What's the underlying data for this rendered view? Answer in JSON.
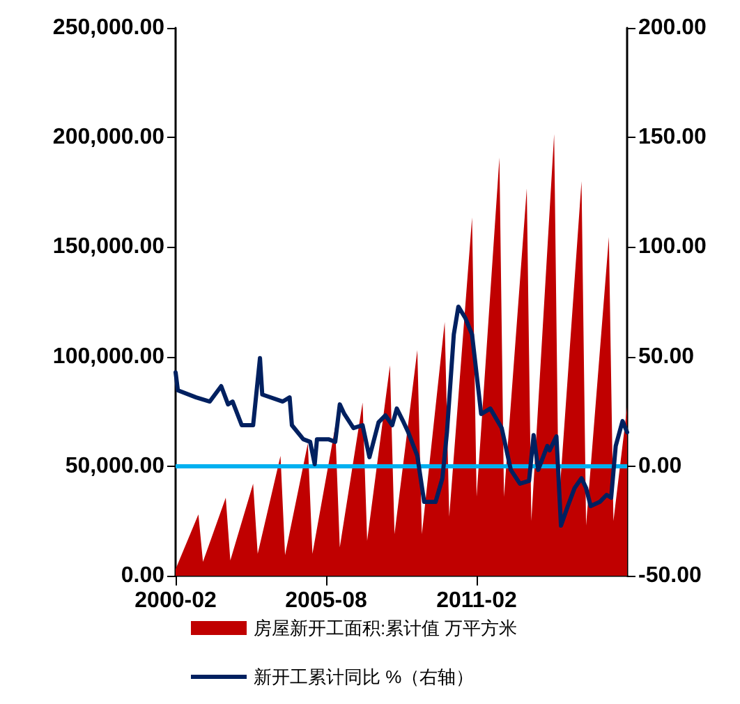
{
  "chart_data": {
    "type": "line",
    "xlim": [
      "2000-02",
      "2016-08"
    ],
    "xticks": [
      "2000-02",
      "2005-08",
      "2011-02"
    ],
    "ylim": [
      0,
      250000
    ],
    "yticks": [
      {
        "value": 0,
        "label": "0.00"
      },
      {
        "value": 50000,
        "label": "50,000.00"
      },
      {
        "value": 100000,
        "label": "100,000.00"
      },
      {
        "value": 150000,
        "label": "150,000.00"
      },
      {
        "value": 200000,
        "label": "200,000.00"
      },
      {
        "value": 250000,
        "label": "250,000.00"
      }
    ],
    "y2lim": [
      -50,
      200
    ],
    "y2ticks": [
      {
        "value": -50,
        "label": "-50.00"
      },
      {
        "value": 0,
        "label": "0.00"
      },
      {
        "value": 50,
        "label": "50.00"
      },
      {
        "value": 100,
        "label": "100.00"
      },
      {
        "value": 150,
        "label": "150.00"
      },
      {
        "value": 200,
        "label": "200.00"
      }
    ],
    "grid": false,
    "legend": "bottom",
    "marker": "none",
    "line_style": "solid",
    "ref_lines": [
      {
        "axis": "y2",
        "value": 0,
        "color": "#00b0f0"
      }
    ],
    "series": [
      {
        "name": "房屋新开工面积:累计值 万平方米",
        "type": "area",
        "color": "#c00000",
        "x": [
          "2000-02",
          "2000-12",
          "2001-02",
          "2001-12",
          "2002-02",
          "2002-12",
          "2003-02",
          "2003-12",
          "2004-02",
          "2004-12",
          "2005-02",
          "2005-12",
          "2006-02",
          "2006-12",
          "2007-02",
          "2007-12",
          "2008-02",
          "2008-12",
          "2009-02",
          "2009-12",
          "2010-02",
          "2010-12",
          "2011-02",
          "2011-12",
          "2012-02",
          "2012-12",
          "2013-02",
          "2013-12",
          "2014-02",
          "2014-12",
          "2015-02",
          "2015-12",
          "2016-02",
          "2016-08"
        ],
        "values": [
          3000,
          28000,
          6400,
          35600,
          7000,
          42000,
          10000,
          54700,
          9500,
          60400,
          10000,
          68000,
          13000,
          79000,
          16000,
          96000,
          19000,
          103000,
          19000,
          115800,
          27000,
          163500,
          36000,
          190800,
          36000,
          176800,
          25000,
          201600,
          32000,
          180000,
          23000,
          154600,
          25000,
          77000
        ]
      },
      {
        "name": "新开工累计同比 %（右轴）",
        "axis": "y2",
        "color": "#002060",
        "x": [
          "2000-02",
          "2000-03",
          "2000-11",
          "2001-05",
          "2001-10",
          "2002-01",
          "2002-03",
          "2002-07",
          "2002-12",
          "2003-03",
          "2003-04",
          "2004-01",
          "2004-04",
          "2004-05",
          "2004-10",
          "2005-01",
          "2005-03",
          "2005-04",
          "2005-09",
          "2005-12",
          "2006-02",
          "2006-04",
          "2006-08",
          "2006-12",
          "2007-03",
          "2007-07",
          "2007-10",
          "2008-01",
          "2008-03",
          "2008-06",
          "2008-08",
          "2008-12",
          "2009-03",
          "2009-08",
          "2009-11",
          "2010-01",
          "2010-04",
          "2010-06",
          "2010-09",
          "2010-12",
          "2011-04",
          "2011-08",
          "2012-01",
          "2012-05",
          "2012-09",
          "2013-01",
          "2013-03",
          "2013-05",
          "2013-09",
          "2013-10",
          "2014-01",
          "2014-03",
          "2014-06",
          "2014-09",
          "2014-12",
          "2015-02",
          "2015-04",
          "2015-08",
          "2015-11",
          "2016-01",
          "2016-03",
          "2016-06",
          "2016-08"
        ],
        "values": [
          42.8,
          34.6,
          31.4,
          29.5,
          36.5,
          28.2,
          29.5,
          18.7,
          18.7,
          49.3,
          32.7,
          29.5,
          31.4,
          18.7,
          12.3,
          11.1,
          0.9,
          12.3,
          12.3,
          11.1,
          28.2,
          23.8,
          17.4,
          18.7,
          4.1,
          20,
          23.2,
          18.7,
          26.3,
          20,
          15.5,
          4.7,
          -16.3,
          -16.3,
          -5.5,
          15.5,
          60.1,
          72.8,
          67.7,
          60.1,
          23.8,
          26.3,
          17.4,
          -1.7,
          -8,
          -6.7,
          14.2,
          -1.7,
          9.2,
          7.2,
          13.6,
          -27.1,
          -18.2,
          -9.9,
          -5.5,
          -9.9,
          -18.2,
          -16.3,
          -13.1,
          -14.4,
          9.2,
          20.6,
          15.5
        ]
      }
    ]
  }
}
